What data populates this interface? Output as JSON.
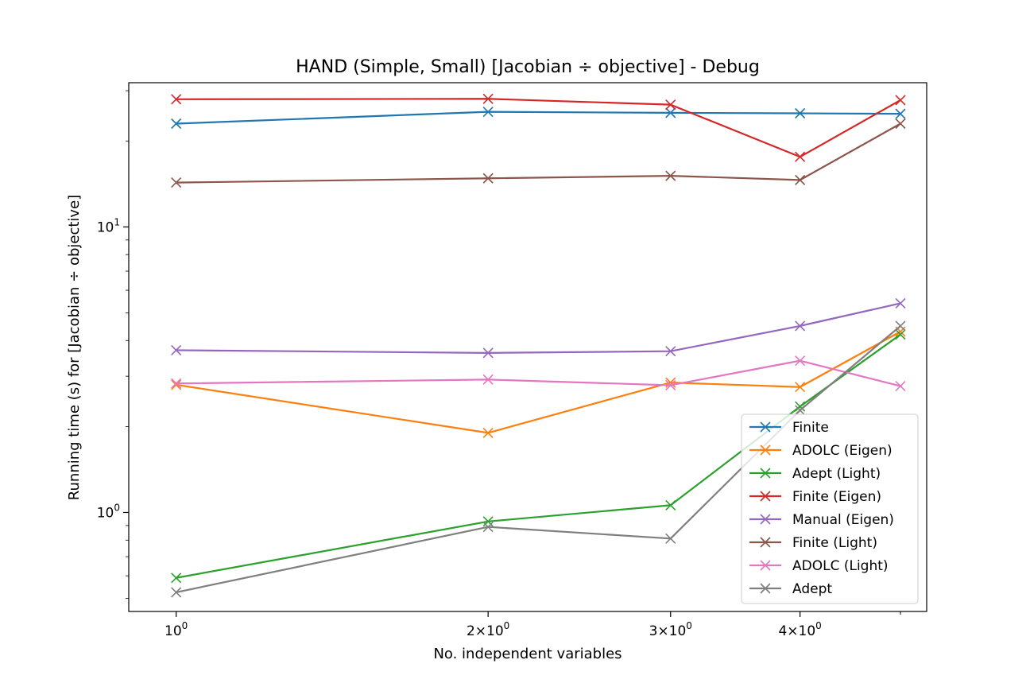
{
  "chart_data": {
    "type": "line",
    "title": "HAND (Simple, Small) [Jacobian ÷ objective] - Debug",
    "xlabel": "No. independent variables",
    "ylabel": "Running time (s) for [Jacobian ÷ objective]",
    "x_scale": "log",
    "y_scale": "log",
    "x": [
      1,
      2,
      3,
      4,
      5
    ],
    "xlim": [
      0.9,
      5.3
    ],
    "ylim": [
      0.45,
      32
    ],
    "x_ticks": [
      {
        "value": 1,
        "base": "10",
        "exp": "0"
      },
      {
        "value": 2,
        "base": "2×10",
        "exp": "0"
      },
      {
        "value": 3,
        "base": "3×10",
        "exp": "0"
      },
      {
        "value": 4,
        "base": "4×10",
        "exp": "0"
      }
    ],
    "y_ticks": [
      {
        "value": 1,
        "base": "10",
        "exp": "0"
      },
      {
        "value": 10,
        "base": "10",
        "exp": "1"
      }
    ],
    "legend_position": "lower right",
    "series": [
      {
        "name": "Finite",
        "color": "#1f77b4",
        "values": [
          23.0,
          25.3,
          25.1,
          25.0,
          24.9
        ]
      },
      {
        "name": "ADOLC (Eigen)",
        "color": "#ff7f0e",
        "values": [
          2.8,
          1.9,
          2.85,
          2.75,
          4.3
        ]
      },
      {
        "name": "Adept (Light)",
        "color": "#2ca02c",
        "values": [
          0.59,
          0.93,
          1.06,
          2.35,
          4.2
        ]
      },
      {
        "name": "Finite (Eigen)",
        "color": "#d62728",
        "values": [
          28.0,
          28.1,
          26.8,
          17.6,
          27.8
        ]
      },
      {
        "name": "Manual (Eigen)",
        "color": "#9467bd",
        "values": [
          3.7,
          3.62,
          3.67,
          4.5,
          5.4
        ]
      },
      {
        "name": "Finite (Light)",
        "color": "#8c564b",
        "values": [
          14.3,
          14.8,
          15.1,
          14.6,
          23.0
        ]
      },
      {
        "name": "ADOLC (Light)",
        "color": "#e377c2",
        "values": [
          2.83,
          2.92,
          2.79,
          3.4,
          2.77
        ]
      },
      {
        "name": "Adept",
        "color": "#7f7f7f",
        "values": [
          0.525,
          0.89,
          0.81,
          2.28,
          4.5
        ]
      }
    ]
  }
}
